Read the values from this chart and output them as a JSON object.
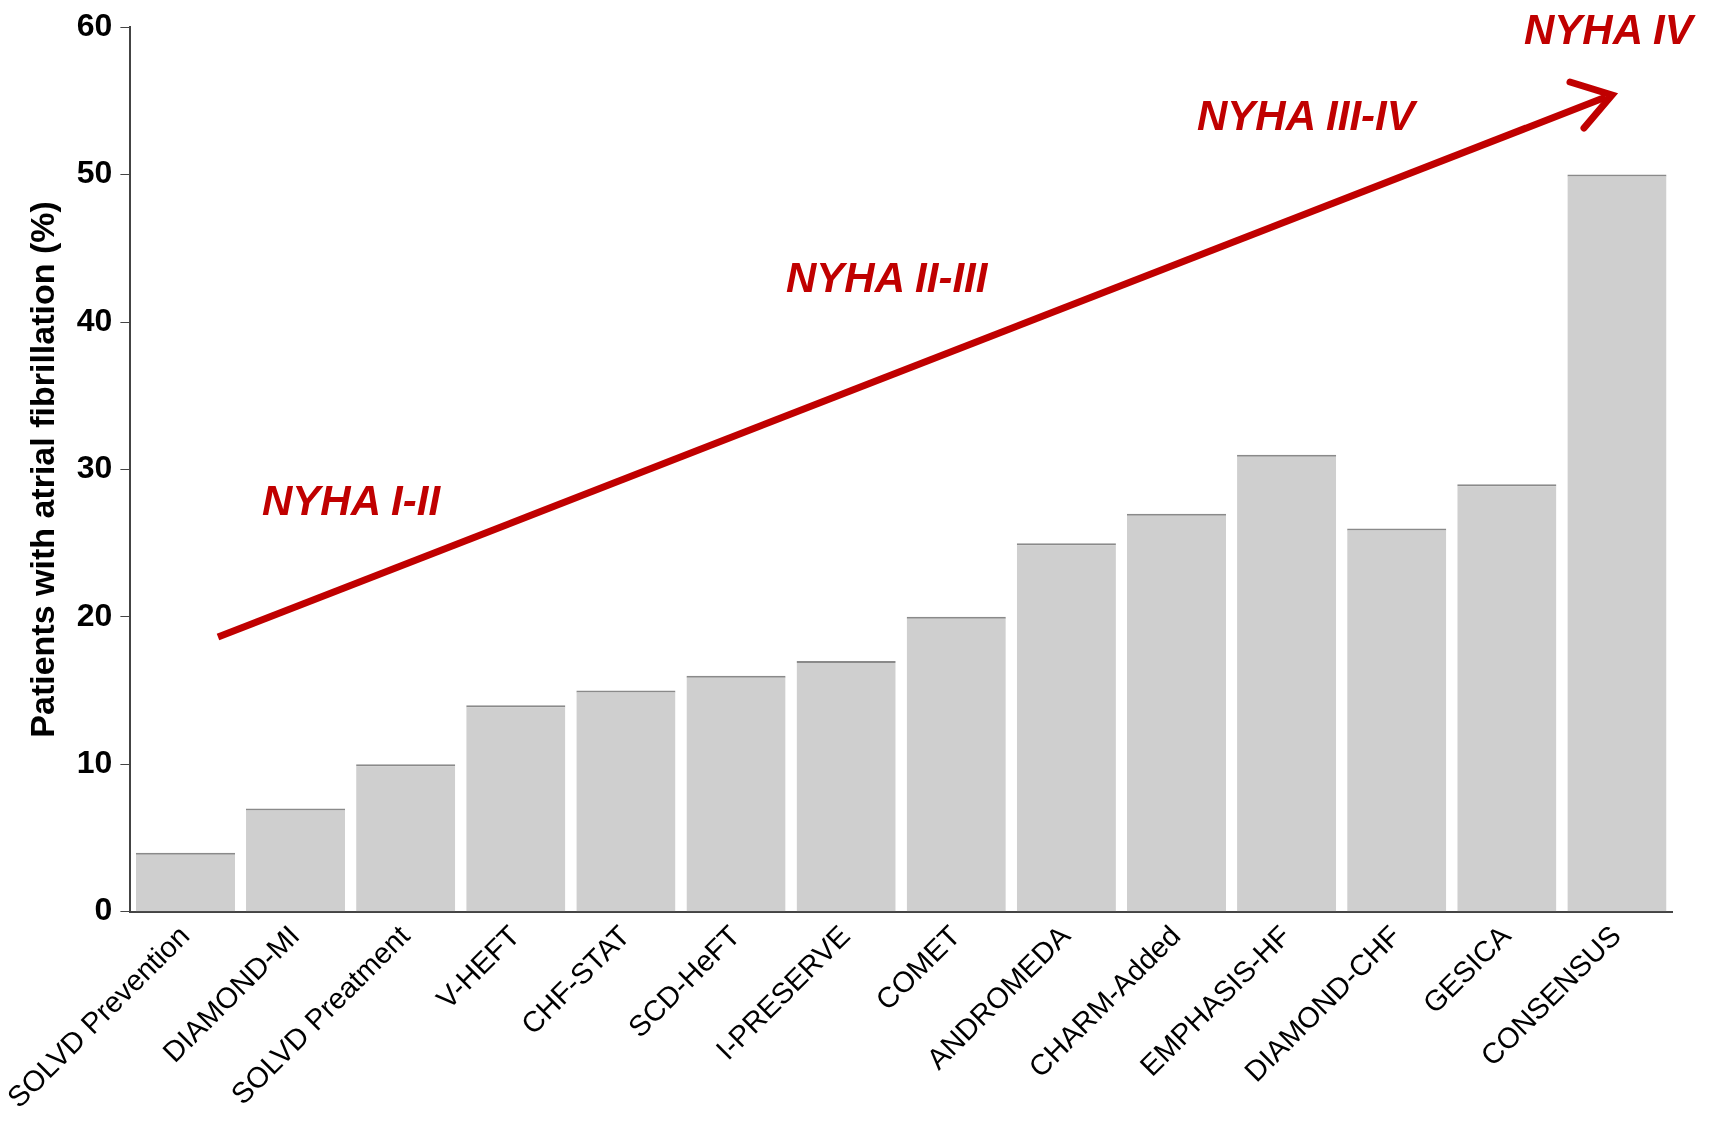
{
  "chart_data": {
    "type": "bar",
    "ylabel": "Patients with atrial fibrillation (%)",
    "categories": [
      "SOLVD Prevention",
      "DIAMOND-MI",
      "SOLVD Preatment",
      "V-HEFT",
      "CHF-STAT",
      "SCD-HeFT",
      "I-PRESERVE",
      "COMET",
      "ANDROMEDA",
      "CHARM-Added",
      "EMPHASIS-HF",
      "DIAMOND-CHF",
      "GESICA",
      "CONSENSUS"
    ],
    "values": [
      4,
      7,
      10,
      14,
      15,
      16,
      17,
      20,
      25,
      27,
      31,
      26,
      29,
      50
    ],
    "color": "#cfcfcf",
    "ylim": [
      0,
      60
    ],
    "yticks": [
      0,
      10,
      20,
      30,
      40,
      50,
      60
    ],
    "grid": false,
    "legend": false,
    "annotations": [
      "NYHA I-II",
      "NYHA II-III",
      "NYHA III-IV",
      "NYHA IV"
    ]
  }
}
